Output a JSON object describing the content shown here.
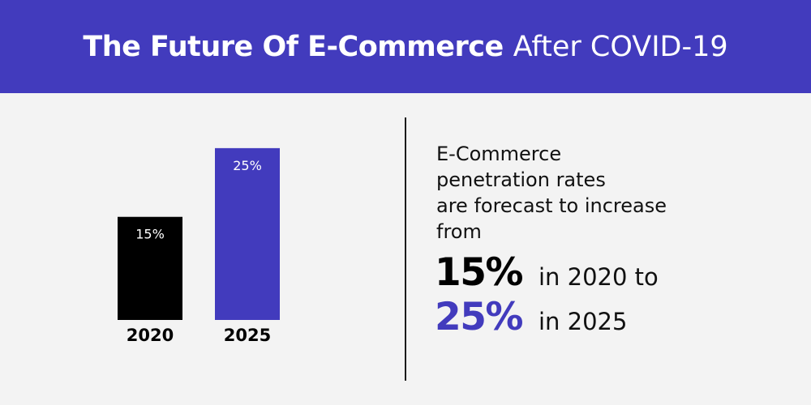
{
  "header": {
    "title_bold": "The Future Of E-Commerce",
    "title_light": "After COVID-19"
  },
  "chart_data": {
    "type": "bar",
    "categories": [
      "2020",
      "2025"
    ],
    "values": [
      15,
      25
    ],
    "data_labels": [
      "15%",
      "25%"
    ],
    "title": "",
    "xlabel": "",
    "ylabel": "",
    "ylim": [
      0,
      33
    ],
    "grid": false,
    "colors": [
      "#000000",
      "#423bbd"
    ]
  },
  "description": {
    "lines": [
      "E-Commerce",
      "penetration rates",
      "are forecast to increase",
      "from"
    ],
    "stat1": {
      "value": "15%",
      "text": "in 2020 to"
    },
    "stat2": {
      "value": "25%",
      "text": "in 2025"
    }
  },
  "colors": {
    "accent": "#423bbd",
    "background": "#f3f3f3",
    "text": "#111111"
  }
}
